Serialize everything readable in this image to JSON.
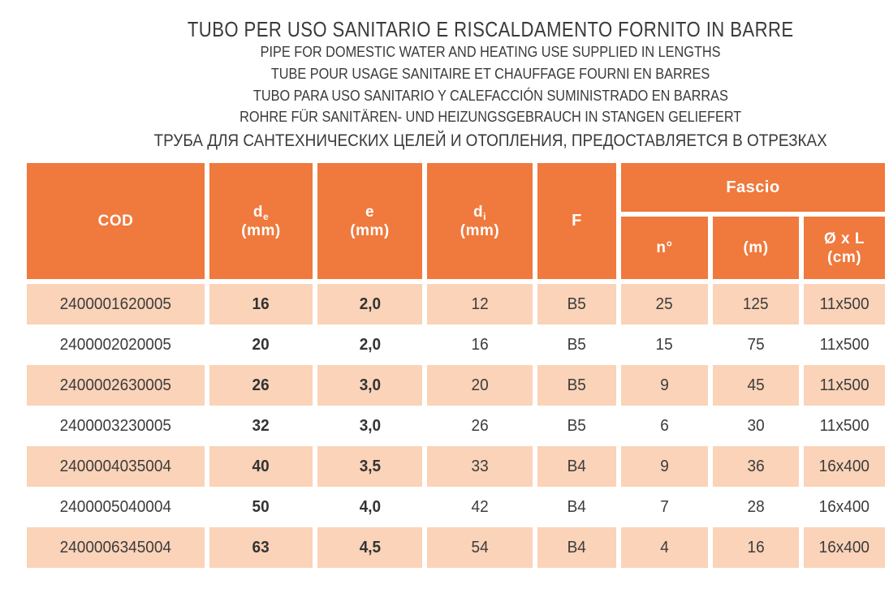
{
  "titles": {
    "it": "TUBO PER USO SANITARIO E RISCALDAMENTO FORNITO IN BARRE",
    "en": "PIPE FOR DOMESTIC WATER AND HEATING USE SUPPLIED IN LENGTHS",
    "fr": "TUBE POUR USAGE SANITAIRE ET CHAUFFAGE FOURNI EN BARRES",
    "es": "TUBO PARA USO SANITARIO Y CALEFACCIÓN SUMINISTRADO EN BARRAS",
    "de": "ROHRE FÜR SANITÄREN- UND HEIZUNGSGEBRAUCH IN STANGEN GELIEFERT",
    "ru": "ТРУБА ДЛЯ САНТЕХНИЧЕСКИХ ЦЕЛЕЙ И ОТОПЛЕНИЯ, ПРЕДОСТАВЛЯЕТСЯ В ОТРЕЗКАХ"
  },
  "table": {
    "headers": {
      "cod": "COD",
      "de_sym": "d",
      "de_sub": "e",
      "de_unit": "(mm)",
      "e_sym": "e",
      "e_unit": "(mm)",
      "di_sym": "d",
      "di_sub": "i",
      "di_unit": "(mm)",
      "f": "F",
      "fascio": "Fascio",
      "n": "n°",
      "m": "(m)",
      "dxl_line1": "Ø x L",
      "dxl_line2": "(cm)"
    },
    "rows": [
      {
        "cod": "2400001620005",
        "de": "16",
        "e": "2,0",
        "di": "12",
        "f": "B5",
        "n": "25",
        "m": "125",
        "dxl": "11x500"
      },
      {
        "cod": "2400002020005",
        "de": "20",
        "e": "2,0",
        "di": "16",
        "f": "B5",
        "n": "15",
        "m": "75",
        "dxl": "11x500"
      },
      {
        "cod": "2400002630005",
        "de": "26",
        "e": "3,0",
        "di": "20",
        "f": "B5",
        "n": "9",
        "m": "45",
        "dxl": "11x500"
      },
      {
        "cod": "2400003230005",
        "de": "32",
        "e": "3,0",
        "di": "26",
        "f": "B5",
        "n": "6",
        "m": "30",
        "dxl": "11x500"
      },
      {
        "cod": "2400004035004",
        "de": "40",
        "e": "3,5",
        "di": "33",
        "f": "B4",
        "n": "9",
        "m": "36",
        "dxl": "16x400"
      },
      {
        "cod": "2400005040004",
        "de": "50",
        "e": "4,0",
        "di": "42",
        "f": "B4",
        "n": "7",
        "m": "28",
        "dxl": "16x400"
      },
      {
        "cod": "2400006345004",
        "de": "63",
        "e": "4,5",
        "di": "54",
        "f": "B4",
        "n": "4",
        "m": "16",
        "dxl": "16x400"
      }
    ]
  },
  "colors": {
    "header_orange": "#F0793D",
    "row_light": "#FAD3B8",
    "text_dark": "#3C3C3C",
    "header_text": "#FFFFFF"
  }
}
